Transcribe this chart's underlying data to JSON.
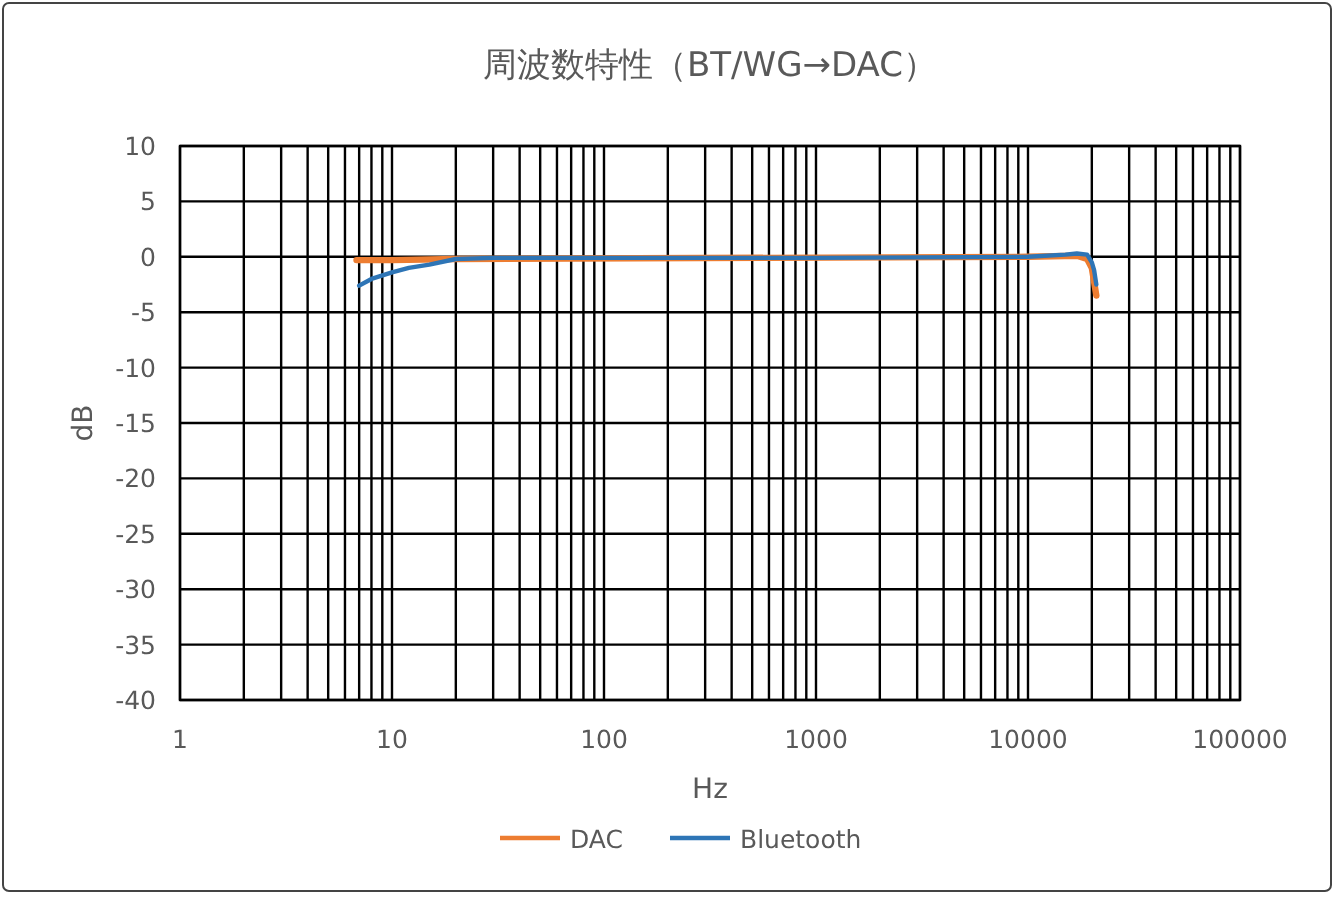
{
  "chart_data": {
    "type": "line",
    "title": "周波数特性（BT/WG→DAC）",
    "xlabel": "Hz",
    "ylabel": "dB",
    "log": "x",
    "grid": true,
    "legend": "bottom",
    "marker": "none",
    "line_style": "solid",
    "xlim": [
      1,
      100000
    ],
    "xticks": [
      1,
      10,
      100,
      1000,
      10000,
      100000
    ],
    "ylim": [
      -40,
      10
    ],
    "yticks": [
      -40,
      -35,
      -30,
      -25,
      -20,
      -15,
      -10,
      -5,
      0,
      5,
      10
    ],
    "series": [
      {
        "name": "DAC",
        "color": "#ed7d31",
        "x": [
          6.8,
          10,
          20,
          10000,
          17000,
          19000,
          20000,
          21000
        ],
        "values": [
          -0.3,
          -0.3,
          -0.2,
          0,
          0.1,
          -0.2,
          -1,
          -3.5
        ]
      },
      {
        "name": "Bluetooth",
        "color": "#2e75b6",
        "x": [
          7,
          8,
          10,
          12,
          15,
          20,
          30,
          100,
          1000,
          10000,
          15000,
          17000,
          19000,
          20000,
          20500,
          21000
        ],
        "values": [
          -2.6,
          -2,
          -1.4,
          -1,
          -0.7,
          -0.2,
          -0.1,
          -0.1,
          -0.1,
          0,
          0.2,
          0.3,
          0.2,
          -0.5,
          -1.2,
          -2.5
        ]
      }
    ]
  }
}
